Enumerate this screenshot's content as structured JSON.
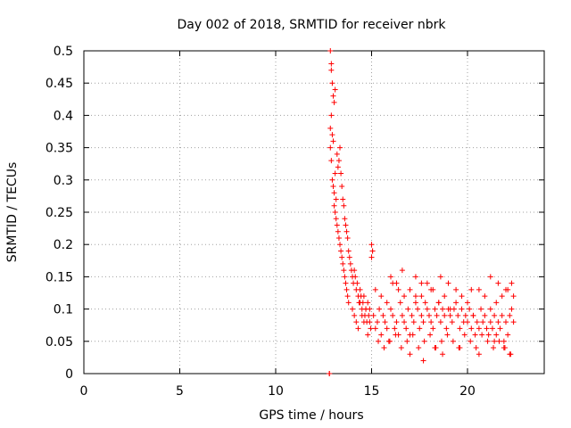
{
  "chart_data": {
    "type": "scatter",
    "title": "Day 002 of 2018, SRMTID for receiver nbrk",
    "xlabel": "GPS time / hours",
    "ylabel": "SRMTID / TECUs",
    "xlim": [
      0,
      24
    ],
    "ylim": [
      0,
      0.5
    ],
    "xticks": [
      0,
      5,
      10,
      15,
      20
    ],
    "yticks": [
      0,
      0.05,
      0.1,
      0.15,
      0.2,
      0.25,
      0.3,
      0.35,
      0.4,
      0.45,
      0.5
    ],
    "grid": true,
    "marker": "+",
    "series": [
      {
        "name": "SRMTID",
        "color": "#ff0000",
        "x": [
          12.8,
          12.8,
          12.85,
          12.9,
          12.95,
          13.0,
          12.85,
          12.9,
          12.9,
          12.95,
          13.0,
          13.05,
          13.1,
          12.85,
          12.9,
          12.95,
          13.0,
          13.05,
          13.1,
          13.15,
          13.05,
          13.1,
          13.15,
          13.2,
          13.25,
          13.3,
          13.2,
          13.25,
          13.3,
          13.35,
          13.4,
          13.45,
          13.5,
          13.55,
          13.6,
          13.65,
          13.7,
          13.75,
          13.35,
          13.4,
          13.45,
          13.5,
          13.55,
          13.6,
          13.65,
          13.7,
          13.75,
          13.8,
          13.8,
          13.85,
          13.9,
          13.95,
          14.0,
          14.05,
          14.1,
          14.15,
          14.2,
          14.25,
          14.3,
          14.35,
          14.4,
          14.45,
          14.5,
          14.55,
          14.6,
          14.65,
          14.7,
          14.75,
          14.8,
          14.85,
          14.9,
          14.95,
          15.0,
          15.05,
          15.0,
          15.05,
          14.0,
          14.1,
          14.2,
          14.3,
          14.4,
          14.5,
          14.6,
          14.7,
          14.8,
          14.9,
          15.1,
          15.2,
          15.3,
          15.4,
          15.5,
          15.6,
          15.7,
          15.8,
          15.9,
          16.0,
          16.1,
          16.2,
          16.3,
          16.4,
          16.5,
          16.6,
          16.7,
          16.8,
          16.9,
          17.0,
          17.1,
          17.2,
          17.3,
          17.4,
          17.5,
          17.6,
          17.7,
          17.8,
          17.9,
          18.0,
          18.1,
          18.2,
          18.3,
          18.4,
          18.5,
          18.6,
          18.7,
          18.8,
          18.9,
          19.0,
          19.1,
          19.2,
          19.3,
          19.4,
          19.5,
          19.6,
          19.7,
          19.8,
          19.9,
          20.0,
          20.1,
          20.2,
          20.3,
          20.4,
          20.5,
          20.6,
          20.7,
          20.8,
          20.9,
          21.0,
          21.1,
          21.2,
          21.3,
          21.4,
          21.5,
          21.6,
          21.7,
          21.8,
          21.9,
          22.0,
          22.1,
          22.2,
          22.3,
          22.4,
          15.2,
          15.5,
          15.8,
          16.1,
          16.4,
          16.7,
          17.0,
          17.3,
          17.6,
          17.9,
          18.2,
          18.5,
          18.8,
          19.1,
          19.4,
          19.7,
          20.0,
          20.3,
          20.6,
          20.9,
          21.2,
          21.5,
          21.8,
          22.1,
          22.4,
          15.35,
          15.65,
          15.95,
          16.25,
          16.55,
          16.85,
          17.15,
          17.45,
          17.75,
          18.05,
          18.35,
          18.65,
          18.95,
          19.25,
          19.55,
          19.85,
          20.15,
          20.45,
          20.75,
          21.05,
          21.35,
          21.65,
          21.95,
          22.25,
          16.0,
          16.3,
          16.6,
          17.3,
          17.6,
          18.1,
          18.6,
          19.0,
          20.2,
          21.2,
          21.6,
          22.0,
          22.3,
          17.0,
          17.7,
          18.3,
          18.7,
          19.6,
          20.6,
          21.4,
          21.9,
          22.2
        ],
        "y": [
          0.0,
          0.0,
          0.38,
          0.4,
          0.37,
          0.36,
          0.5,
          0.48,
          0.47,
          0.45,
          0.43,
          0.42,
          0.44,
          0.35,
          0.33,
          0.3,
          0.29,
          0.28,
          0.31,
          0.27,
          0.26,
          0.25,
          0.24,
          0.23,
          0.22,
          0.21,
          0.34,
          0.32,
          0.33,
          0.35,
          0.31,
          0.29,
          0.27,
          0.26,
          0.24,
          0.23,
          0.22,
          0.21,
          0.2,
          0.19,
          0.18,
          0.17,
          0.16,
          0.15,
          0.14,
          0.13,
          0.12,
          0.11,
          0.19,
          0.18,
          0.17,
          0.16,
          0.15,
          0.14,
          0.16,
          0.15,
          0.13,
          0.14,
          0.12,
          0.11,
          0.13,
          0.12,
          0.1,
          0.11,
          0.12,
          0.09,
          0.1,
          0.08,
          0.11,
          0.09,
          0.1,
          0.07,
          0.2,
          0.19,
          0.18,
          0.19,
          0.1,
          0.09,
          0.08,
          0.07,
          0.11,
          0.09,
          0.08,
          0.1,
          0.06,
          0.08,
          0.09,
          0.07,
          0.08,
          0.1,
          0.06,
          0.09,
          0.08,
          0.07,
          0.05,
          0.1,
          0.09,
          0.07,
          0.08,
          0.06,
          0.11,
          0.09,
          0.08,
          0.07,
          0.1,
          0.06,
          0.09,
          0.08,
          0.12,
          0.1,
          0.07,
          0.09,
          0.08,
          0.11,
          0.1,
          0.09,
          0.08,
          0.07,
          0.1,
          0.09,
          0.11,
          0.08,
          0.1,
          0.09,
          0.07,
          0.1,
          0.09,
          0.08,
          0.1,
          0.11,
          0.09,
          0.07,
          0.1,
          0.08,
          0.09,
          0.08,
          0.1,
          0.07,
          0.09,
          0.06,
          0.08,
          0.07,
          0.1,
          0.08,
          0.09,
          0.07,
          0.06,
          0.08,
          0.07,
          0.09,
          0.06,
          0.08,
          0.07,
          0.09,
          0.05,
          0.08,
          0.06,
          0.09,
          0.1,
          0.08,
          0.13,
          0.12,
          0.11,
          0.14,
          0.13,
          0.12,
          0.13,
          0.11,
          0.12,
          0.14,
          0.13,
          0.11,
          0.12,
          0.1,
          0.13,
          0.12,
          0.11,
          0.09,
          0.13,
          0.12,
          0.1,
          0.11,
          0.12,
          0.13,
          0.12,
          0.05,
          0.04,
          0.05,
          0.06,
          0.04,
          0.05,
          0.06,
          0.04,
          0.05,
          0.06,
          0.04,
          0.05,
          0.06,
          0.05,
          0.04,
          0.06,
          0.05,
          0.04,
          0.06,
          0.05,
          0.04,
          0.05,
          0.04,
          0.03,
          0.15,
          0.14,
          0.16,
          0.15,
          0.14,
          0.13,
          0.15,
          0.14,
          0.13,
          0.15,
          0.14,
          0.13,
          0.14,
          0.03,
          0.02,
          0.04,
          0.03,
          0.04,
          0.03,
          0.05,
          0.04,
          0.03
        ]
      }
    ]
  }
}
